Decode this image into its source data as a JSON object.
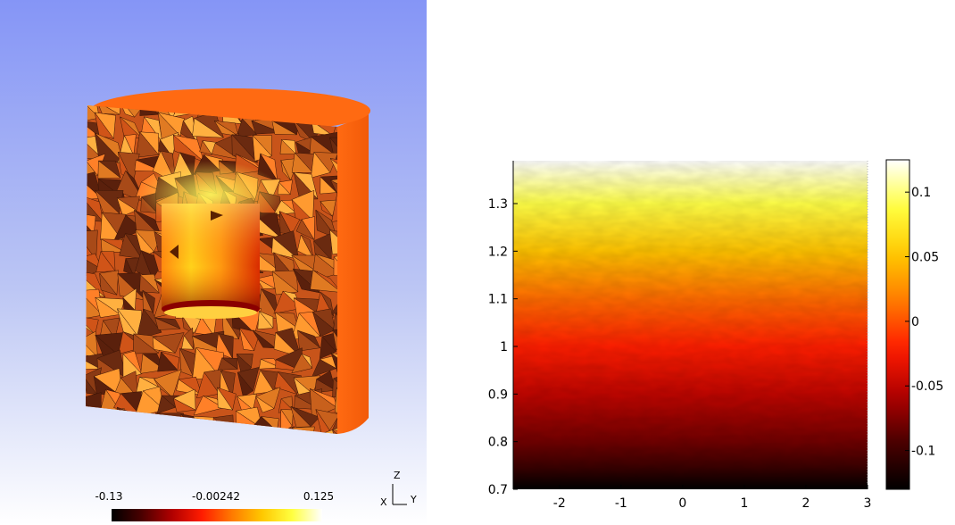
{
  "left_view": {
    "colorbar": {
      "min_label": "-0.13",
      "mid_label": "-0.00242",
      "max_label": "0.125"
    },
    "axes_triad": {
      "z": "Z",
      "x": "X",
      "y": "Y"
    }
  },
  "colors": {
    "colormap": [
      "#000000",
      "#4a0000",
      "#b00000",
      "#ff1c00",
      "#ff7a00",
      "#ffc800",
      "#ffff40",
      "#ffffff"
    ],
    "background_top": "#8595f6",
    "background_bottom": "#ffffff",
    "solid": "#ff6a12"
  },
  "chart_data": {
    "type": "heatmap",
    "xlim": [
      -2.75,
      3.0
    ],
    "ylim": [
      0.7,
      1.39
    ],
    "x_ticks": [
      "-2",
      "-1",
      "0",
      "1",
      "2",
      "3"
    ],
    "y_ticks": [
      "0.7",
      "0.8",
      "0.9",
      "1",
      "1.1",
      "1.2",
      "1.3"
    ],
    "field_profile": [
      {
        "y": 0.7,
        "value": -0.13
      },
      {
        "y": 0.75,
        "value": -0.1
      },
      {
        "y": 0.8,
        "value": -0.08
      },
      {
        "y": 0.9,
        "value": -0.05
      },
      {
        "y": 1.0,
        "value": -0.02
      },
      {
        "y": 1.1,
        "value": 0.01
      },
      {
        "y": 1.2,
        "value": 0.05
      },
      {
        "y": 1.3,
        "value": 0.09
      },
      {
        "y": 1.39,
        "value": 0.125
      }
    ],
    "colorbar": {
      "min": -0.13,
      "max": 0.125,
      "ticks": [
        "0.1",
        "0.05",
        "0",
        "-0.05",
        "-0.1"
      ],
      "tick_values": [
        0.1,
        0.05,
        0.0,
        -0.05,
        -0.1
      ]
    },
    "grid": false,
    "legend": "colorbar at right"
  }
}
